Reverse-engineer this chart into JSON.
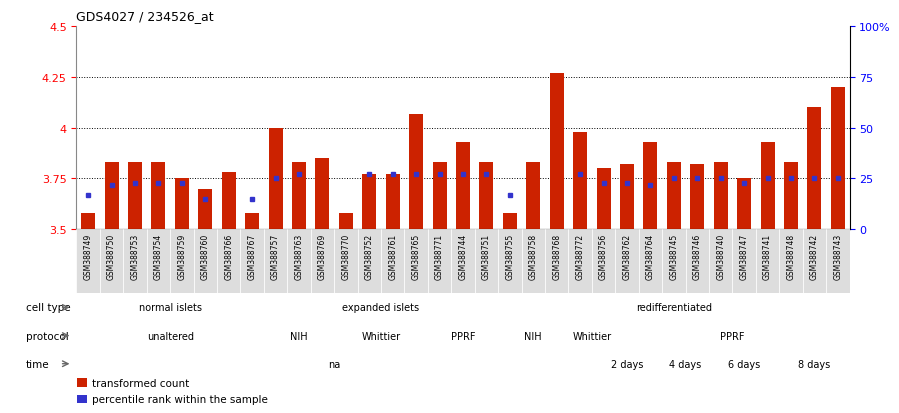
{
  "title": "GDS4027 / 234526_at",
  "samples": [
    "GSM388749",
    "GSM388750",
    "GSM388753",
    "GSM388754",
    "GSM388759",
    "GSM388760",
    "GSM388766",
    "GSM388767",
    "GSM388757",
    "GSM388763",
    "GSM388769",
    "GSM388770",
    "GSM388752",
    "GSM388761",
    "GSM388765",
    "GSM388771",
    "GSM388744",
    "GSM388751",
    "GSM388755",
    "GSM388758",
    "GSM388768",
    "GSM388772",
    "GSM388756",
    "GSM388762",
    "GSM388764",
    "GSM388745",
    "GSM388746",
    "GSM388740",
    "GSM388747",
    "GSM388741",
    "GSM388748",
    "GSM388742",
    "GSM388743"
  ],
  "bar_values": [
    3.58,
    3.83,
    3.83,
    3.83,
    3.75,
    3.7,
    3.78,
    3.58,
    4.0,
    3.83,
    3.85,
    3.58,
    3.77,
    3.77,
    4.07,
    3.83,
    3.93,
    3.83,
    3.58,
    3.83,
    4.27,
    3.98,
    3.8,
    3.82,
    3.93,
    3.83,
    3.82,
    3.83,
    3.75,
    3.93,
    3.83,
    4.1,
    4.2
  ],
  "dot_values": [
    3.67,
    3.72,
    3.73,
    3.73,
    3.73,
    3.65,
    null,
    3.65,
    3.75,
    3.77,
    null,
    null,
    3.77,
    3.77,
    3.77,
    3.77,
    3.77,
    3.77,
    3.67,
    null,
    null,
    3.77,
    3.73,
    3.73,
    3.72,
    3.75,
    3.75,
    3.75,
    3.73,
    3.75,
    3.75,
    3.75,
    3.75
  ],
  "ylim": [
    3.5,
    4.5
  ],
  "yticks": [
    3.5,
    3.75,
    4.0,
    4.25,
    4.5
  ],
  "ytick_labels_left": [
    "3.5",
    "3.75",
    "4",
    "4.25",
    "4.5"
  ],
  "ytick_labels_right": [
    "0",
    "25",
    "50",
    "75",
    "100%"
  ],
  "grid_lines": [
    3.75,
    4.0,
    4.25
  ],
  "bar_color": "#cc2200",
  "dot_color": "#3333cc",
  "cell_type_groups": [
    {
      "label": "normal islets",
      "start": 0,
      "end": 7,
      "color": "#bbeecc"
    },
    {
      "label": "expanded islets",
      "start": 8,
      "end": 17,
      "color": "#66cc77"
    },
    {
      "label": "redifferentiated",
      "start": 18,
      "end": 32,
      "color": "#44cc55"
    }
  ],
  "protocol_groups": [
    {
      "label": "unaltered",
      "start": 0,
      "end": 7,
      "color": "#8888dd"
    },
    {
      "label": "NIH",
      "start": 8,
      "end": 10,
      "color": "#aaaaee"
    },
    {
      "label": "Whittier",
      "start": 11,
      "end": 14,
      "color": "#aaaaee"
    },
    {
      "label": "PPRF",
      "start": 15,
      "end": 17,
      "color": "#aaaaee"
    },
    {
      "label": "NIH",
      "start": 18,
      "end": 20,
      "color": "#aaaaee"
    },
    {
      "label": "Whittier",
      "start": 21,
      "end": 22,
      "color": "#aaaaee"
    },
    {
      "label": "PPRF",
      "start": 23,
      "end": 32,
      "color": "#8888dd"
    }
  ],
  "time_groups": [
    {
      "label": "na",
      "start": 0,
      "end": 21,
      "color": "#cc7766"
    },
    {
      "label": "2 days",
      "start": 22,
      "end": 24,
      "color": "#ffdddd"
    },
    {
      "label": "4 days",
      "start": 25,
      "end": 26,
      "color": "#ee9988"
    },
    {
      "label": "6 days",
      "start": 27,
      "end": 29,
      "color": "#dd7766"
    },
    {
      "label": "8 days",
      "start": 30,
      "end": 32,
      "color": "#cc6655"
    }
  ],
  "legend_items": [
    {
      "color": "#cc2200",
      "label": "transformed count"
    },
    {
      "color": "#3333cc",
      "label": "percentile rank within the sample"
    }
  ]
}
